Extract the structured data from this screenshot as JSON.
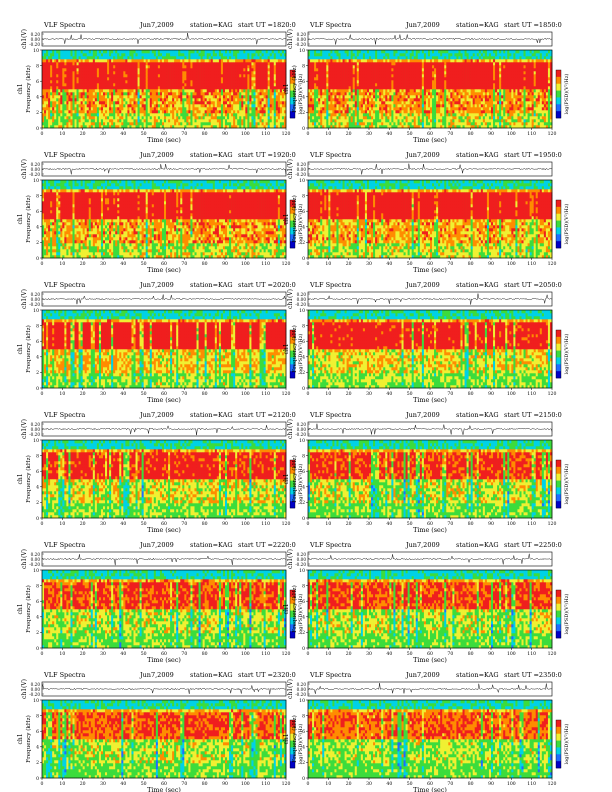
{
  "palette": {
    "deep_blue": "#0000c8",
    "blue": "#1e6cff",
    "cyan": "#00d2e6",
    "green": "#3cdc3c",
    "yellow": "#f0f032",
    "orange": "#ff8c00",
    "red": "#f01e1e",
    "trace": "#000000"
  },
  "labels": {
    "series": "VLF Spectra",
    "date": "Jun7,2009",
    "station": "station=KAG",
    "start_prefix": "start  UT =",
    "amp_axis": "ch1(V)",
    "channel_label": "ch1",
    "freq_axis": "Frequency (kHz)",
    "x_axis": "Time (sec)",
    "colorbar": "log(PSD)(V²/Hz)"
  },
  "chart_data": [
    {
      "type": "heatmap",
      "title": "VLF Spectra  Jun7,2009  station=KAG  start UT =1820:0",
      "start_ut": "1820:0",
      "xlabel": "Time (sec)",
      "ylabel": "Frequency (kHz)",
      "xlim": [
        0,
        120
      ],
      "ylim": [
        0,
        10
      ],
      "xticks": [
        0,
        10,
        20,
        30,
        40,
        50,
        60,
        70,
        80,
        90,
        100,
        110,
        120
      ],
      "yticks": [
        0,
        2,
        4,
        6,
        8,
        10
      ],
      "amp_ylabel": "ch1(V)",
      "amp_ticks": [
        "0.20",
        "0.00",
        "-0.20"
      ],
      "amp_ylim": [
        -0.2,
        0.2
      ],
      "colorbar_label": "log(PSD)(V²/Hz)",
      "intensity": 1.0
    },
    {
      "type": "heatmap",
      "title": "VLF Spectra  Jun7,2009  station=KAG  start UT =1850:0",
      "start_ut": "1850:0",
      "xlabel": "Time (sec)",
      "ylabel": "Frequency (kHz)",
      "xlim": [
        0,
        120
      ],
      "ylim": [
        0,
        10
      ],
      "xticks": [
        0,
        10,
        20,
        30,
        40,
        50,
        60,
        70,
        80,
        90,
        100,
        110,
        120
      ],
      "yticks": [
        0,
        2,
        4,
        6,
        8,
        10
      ],
      "amp_ylabel": "ch1(V)",
      "amp_ticks": [
        "0.20",
        "0.00",
        "-0.20"
      ],
      "amp_ylim": [
        -0.2,
        0.2
      ],
      "colorbar_label": "log(PSD)(V²/Hz)",
      "intensity": 1.0
    },
    {
      "type": "heatmap",
      "title": "VLF Spectra  Jun7,2009  station=KAG  start UT =1920:0",
      "start_ut": "1920:0",
      "xlabel": "Time (sec)",
      "ylabel": "Frequency (kHz)",
      "xlim": [
        0,
        120
      ],
      "ylim": [
        0,
        10
      ],
      "xticks": [
        0,
        10,
        20,
        30,
        40,
        50,
        60,
        70,
        80,
        90,
        100,
        110,
        120
      ],
      "yticks": [
        0,
        2,
        4,
        6,
        8,
        10
      ],
      "amp_ylabel": "ch1(V)",
      "amp_ticks": [
        "0.20",
        "0.00",
        "-0.20"
      ],
      "amp_ylim": [
        -0.2,
        0.2
      ],
      "colorbar_label": "log(PSD)(V²/Hz)",
      "intensity": 0.95
    },
    {
      "type": "heatmap",
      "title": "VLF Spectra  Jun7,2009  station=KAG  start UT =1950:0",
      "start_ut": "1950:0",
      "xlabel": "Time (sec)",
      "ylabel": "Frequency (kHz)",
      "xlim": [
        0,
        120
      ],
      "ylim": [
        0,
        10
      ],
      "xticks": [
        0,
        10,
        20,
        30,
        40,
        50,
        60,
        70,
        80,
        90,
        100,
        110,
        120
      ],
      "yticks": [
        0,
        2,
        4,
        6,
        8,
        10
      ],
      "amp_ylabel": "ch1(V)",
      "amp_ticks": [
        "0.20",
        "0.00",
        "-0.20"
      ],
      "amp_ylim": [
        -0.2,
        0.2
      ],
      "colorbar_label": "log(PSD)(V²/Hz)",
      "intensity": 0.9
    },
    {
      "type": "heatmap",
      "title": "VLF Spectra  Jun7,2009  station=KAG  start UT =2020:0",
      "start_ut": "2020:0",
      "xlabel": "Time (sec)",
      "ylabel": "Frequency (kHz)",
      "xlim": [
        0,
        120
      ],
      "ylim": [
        0,
        10
      ],
      "xticks": [
        0,
        10,
        20,
        30,
        40,
        50,
        60,
        70,
        80,
        90,
        100,
        110,
        120
      ],
      "yticks": [
        0,
        2,
        4,
        6,
        8,
        10
      ],
      "amp_ylabel": "ch1(V)",
      "amp_ticks": [
        "0.20",
        "0.00",
        "-0.20"
      ],
      "amp_ylim": [
        -0.2,
        0.2
      ],
      "colorbar_label": "log(PSD)(V²/Hz)",
      "intensity": 0.75
    },
    {
      "type": "heatmap",
      "title": "VLF Spectra  Jun7,2009  station=KAG  start UT =2050:0",
      "start_ut": "2050:0",
      "xlabel": "Time (sec)",
      "ylabel": "Frequency (kHz)",
      "xlim": [
        0,
        120
      ],
      "ylim": [
        0,
        10
      ],
      "xticks": [
        0,
        10,
        20,
        30,
        40,
        50,
        60,
        70,
        80,
        90,
        100,
        110,
        120
      ],
      "yticks": [
        0,
        2,
        4,
        6,
        8,
        10
      ],
      "amp_ylabel": "ch1(V)",
      "amp_ticks": [
        "0.20",
        "0.00",
        "-0.20"
      ],
      "amp_ylim": [
        -0.2,
        0.2
      ],
      "colorbar_label": "log(PSD)(V²/Hz)",
      "intensity": 0.65
    },
    {
      "type": "heatmap",
      "title": "VLF Spectra  Jun7,2009  station=KAG  start UT =2120:0",
      "start_ut": "2120:0",
      "xlabel": "Time (sec)",
      "ylabel": "Frequency (kHz)",
      "xlim": [
        0,
        120
      ],
      "ylim": [
        0,
        10
      ],
      "xticks": [
        0,
        10,
        20,
        30,
        40,
        50,
        60,
        70,
        80,
        90,
        100,
        110,
        120
      ],
      "yticks": [
        0,
        2,
        4,
        6,
        8,
        10
      ],
      "amp_ylabel": "ch1(V)",
      "amp_ticks": [
        "0.20",
        "0.00",
        "-0.20"
      ],
      "amp_ylim": [
        -0.2,
        0.2
      ],
      "colorbar_label": "log(PSD)(V²/Hz)",
      "intensity": 0.6
    },
    {
      "type": "heatmap",
      "title": "VLF Spectra  Jun7,2009  station=KAG  start UT =2150:0",
      "start_ut": "2150:0",
      "xlabel": "Time (sec)",
      "ylabel": "Frequency (kHz)",
      "xlim": [
        0,
        120
      ],
      "ylim": [
        0,
        10
      ],
      "xticks": [
        0,
        10,
        20,
        30,
        40,
        50,
        60,
        70,
        80,
        90,
        100,
        110,
        120
      ],
      "yticks": [
        0,
        2,
        4,
        6,
        8,
        10
      ],
      "amp_ylabel": "ch1(V)",
      "amp_ticks": [
        "0.20",
        "0.00",
        "-0.20"
      ],
      "amp_ylim": [
        -0.2,
        0.2
      ],
      "colorbar_label": "log(PSD)(V²/Hz)",
      "intensity": 0.55
    },
    {
      "type": "heatmap",
      "title": "VLF Spectra  Jun7,2009  station=KAG  start UT =2220:0",
      "start_ut": "2220:0",
      "xlabel": "Time (sec)",
      "ylabel": "Frequency (kHz)",
      "xlim": [
        0,
        120
      ],
      "ylim": [
        0,
        10
      ],
      "xticks": [
        0,
        10,
        20,
        30,
        40,
        50,
        60,
        70,
        80,
        90,
        100,
        110,
        120
      ],
      "yticks": [
        0,
        2,
        4,
        6,
        8,
        10
      ],
      "amp_ylabel": "ch1(V)",
      "amp_ticks": [
        "0.20",
        "0.00",
        "-0.20"
      ],
      "amp_ylim": [
        -0.2,
        0.2
      ],
      "colorbar_label": "log(PSD)(V²/Hz)",
      "intensity": 0.5
    },
    {
      "type": "heatmap",
      "title": "VLF Spectra  Jun7,2009  station=KAG  start UT =2250:0",
      "start_ut": "2250:0",
      "xlabel": "Time (sec)",
      "ylabel": "Frequency (kHz)",
      "xlim": [
        0,
        120
      ],
      "ylim": [
        0,
        10
      ],
      "xticks": [
        0,
        10,
        20,
        30,
        40,
        50,
        60,
        70,
        80,
        90,
        100,
        110,
        120
      ],
      "yticks": [
        0,
        2,
        4,
        6,
        8,
        10
      ],
      "amp_ylabel": "ch1(V)",
      "amp_ticks": [
        "0.20",
        "0.00",
        "-0.20"
      ],
      "amp_ylim": [
        -0.2,
        0.2
      ],
      "colorbar_label": "log(PSD)(V²/Hz)",
      "intensity": 0.5
    },
    {
      "type": "heatmap",
      "title": "VLF Spectra  Jun7,2009  station=KAG  start UT =2320:0",
      "start_ut": "2320:0",
      "xlabel": "Time (sec)",
      "ylabel": "Frequency (kHz)",
      "xlim": [
        0,
        120
      ],
      "ylim": [
        0,
        10
      ],
      "xticks": [
        0,
        10,
        20,
        30,
        40,
        50,
        60,
        70,
        80,
        90,
        100,
        110,
        120
      ],
      "yticks": [
        0,
        2,
        4,
        6,
        8,
        10
      ],
      "amp_ylabel": "ch1(V)",
      "amp_ticks": [
        "0.20",
        "0.00",
        "-0.20"
      ],
      "amp_ylim": [
        -0.2,
        0.2
      ],
      "colorbar_label": "log(PSD)(V²/Hz)",
      "intensity": 0.45
    },
    {
      "type": "heatmap",
      "title": "VLF Spectra  Jun7,2009  station=KAG  start UT =2350:0",
      "start_ut": "2350:0",
      "xlabel": "Time (sec)",
      "ylabel": "Frequency (kHz)",
      "xlim": [
        0,
        120
      ],
      "ylim": [
        0,
        10
      ],
      "xticks": [
        0,
        10,
        20,
        30,
        40,
        50,
        60,
        70,
        80,
        90,
        100,
        110,
        120
      ],
      "yticks": [
        0,
        2,
        4,
        6,
        8,
        10
      ],
      "amp_ylabel": "ch1(V)",
      "amp_ticks": [
        "0.20",
        "0.00",
        "-0.20"
      ],
      "amp_ylim": [
        -0.2,
        0.2
      ],
      "colorbar_label": "log(PSD)(V²/Hz)",
      "intensity": 0.4
    }
  ]
}
